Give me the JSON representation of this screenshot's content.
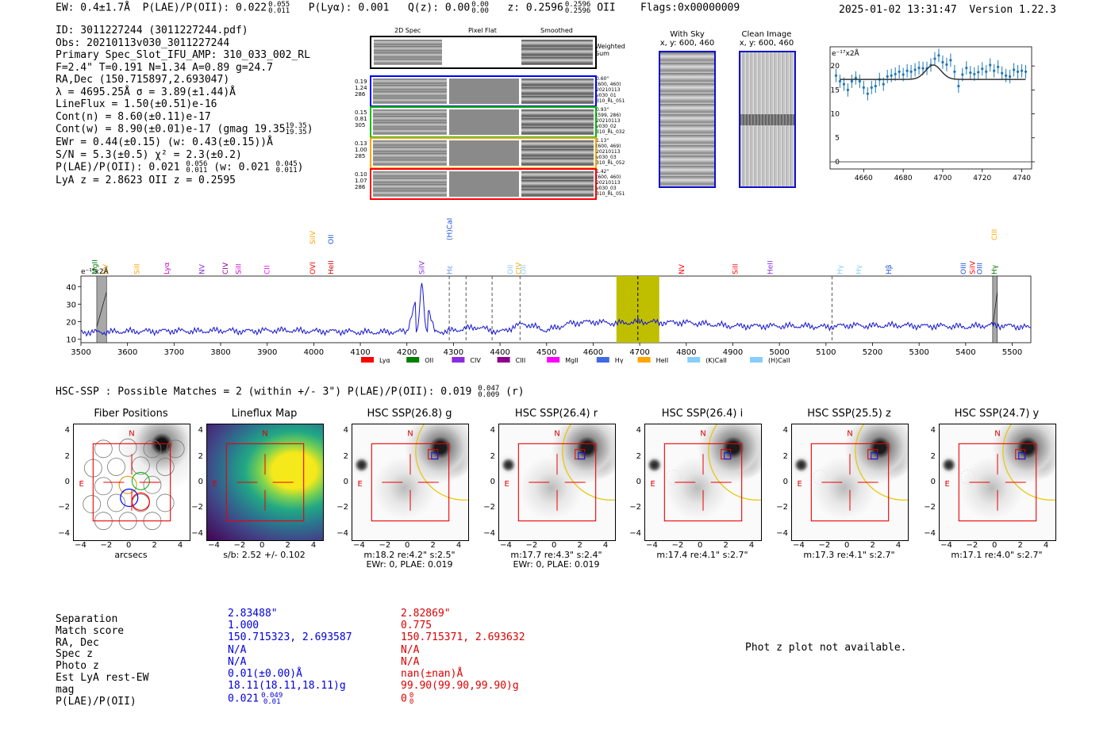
{
  "header": {
    "ew": "EW: 0.4±1.7Å",
    "plae_label": "P(LAE)/P(OII): 0.022",
    "plae_hi": "0.055",
    "plae_lo": "0.011",
    "plya": "P(Lyα): 0.001",
    "qz_label": "Q(z): 0.00",
    "qz_hi": "0.00",
    "qz_lo": "0.00",
    "z_label": "z: 0.2596",
    "z_hi": "0.2596",
    "z_lo": "0.2596",
    "z_line": "OII",
    "flags": "Flags:0x00000009",
    "timestamp": "2025-01-02 13:31:47",
    "version": "Version 1.22.3"
  },
  "info": {
    "id": "ID: 3011227244 (3011227244.pdf)",
    "obs": "Obs: 20210113v030_3011227244",
    "primary": "Primary Spec_Slot_IFU_AMP: 310_033_002_RL",
    "fiber": "F=2.4\"  T=0.191  N=1.34  A=0.89  g=24.7",
    "radec": "RA,Dec (150.715897,2.693047)",
    "lambda": "λ = 4695.25Å  σ = 3.89(±1.44)Å",
    "lineflux": "LineFlux = 1.50(±0.51)e-16",
    "cont_n": "Cont(n) = 8.60(±0.11)e-17",
    "cont_w": "Cont(w) = 8.90(±0.01)e-17 (gmag 19.35",
    "gmag_hi": "19.35",
    "gmag_lo": "19.35",
    "cont_w_close": ")",
    "ewr": "EWr = 0.44(±0.15) (w: 0.43(±0.15))Å",
    "sn": "S/N = 5.3(±0.5)  χ² = 2.3(±0.2)",
    "plae": "P(LAE)/P(OII): 0.021",
    "plae_hi": "0.056",
    "plae_lo": "0.011",
    "plae_w": "(w: 0.021",
    "plae_w_hi": "0.045",
    "plae_w_lo": "0.011",
    "plae_w_close": ")",
    "lya_z": "LyA z = 2.8623  OII z = 0.2595"
  },
  "fiber_panel": {
    "col_2d": "2D Spec",
    "col_flat": "Pixel Flat",
    "col_smooth": "Smoothed",
    "weighted_sum": [
      "Weighted",
      "Sum"
    ],
    "rows": [
      {
        "left": [
          "0.19",
          "1.24",
          "286"
        ],
        "right": [
          "0.60\"",
          "(600, 460)",
          "20210113",
          "v030_01",
          "310_RL_051"
        ],
        "color": "#0000ff"
      },
      {
        "left": [
          "0.15",
          "0.81",
          "305"
        ],
        "right": [
          "0.93\"",
          "(599, 286)",
          "20210113",
          "v030_02",
          "310_RL_032"
        ],
        "color": "#00c000"
      },
      {
        "left": [
          "0.13",
          "1.00",
          "285"
        ],
        "right": [
          "1.13\"",
          "(600, 469)",
          "20210113",
          "v030_03",
          "310_RL_052"
        ],
        "color": "#ffa500"
      },
      {
        "left": [
          "0.10",
          "1.07",
          "286"
        ],
        "right": [
          "1.42\"",
          "(600, 460)",
          "20210113",
          "v030_03",
          "310_RL_051"
        ],
        "color": "#ff0000"
      }
    ]
  },
  "sky_panel": {
    "with_sky": "With Sky",
    "clean": "Clean Image",
    "coords": "x, y: 600, 460"
  },
  "zoom_plot": {
    "ylabel": "e⁻¹⁷x2Å",
    "yticks": [
      "20",
      "15",
      "10",
      "5",
      "0"
    ],
    "xticks": [
      "4660",
      "4680",
      "4700",
      "4720",
      "4740"
    ],
    "chart_data": {
      "type": "scatter",
      "xlim": [
        4643,
        4745
      ],
      "ylim": [
        -1.5,
        24
      ],
      "x": [
        4646,
        4648,
        4650,
        4652,
        4654,
        4656,
        4658,
        4660,
        4662,
        4664,
        4666,
        4668,
        4670,
        4672,
        4674,
        4676,
        4678,
        4680,
        4682,
        4684,
        4686,
        4688,
        4690,
        4692,
        4694,
        4696,
        4698,
        4700,
        4702,
        4704,
        4706,
        4708,
        4710,
        4712,
        4714,
        4716,
        4718,
        4720,
        4722,
        4724,
        4726,
        4728,
        4730,
        4732,
        4734,
        4736,
        4738,
        4740,
        4742
      ],
      "y": [
        18,
        16.8,
        16.2,
        15,
        16.8,
        17.5,
        16.8,
        15.5,
        14.2,
        15.5,
        15.8,
        17.2,
        16.2,
        17.8,
        18,
        18.3,
        18.8,
        18.2,
        19,
        18.8,
        19.2,
        19.6,
        19.5,
        19.5,
        20.2,
        21.5,
        22.2,
        20.8,
        20.3,
        21.2,
        18.8,
        15.8,
        18.2,
        19.6,
        18.6,
        18.3,
        18.7,
        19.4,
        18.8,
        20.2,
        19,
        19.8,
        18.5,
        18,
        17.8,
        19.2,
        18.8,
        19,
        18.8
      ],
      "fit_center": 4695.25,
      "fit_sigma": 3.89,
      "fit_base": 17.2,
      "fit_amp": 3.0
    }
  },
  "spectrum": {
    "ylabel": "e⁻¹⁷x2Å",
    "yticks": [
      "40",
      "30",
      "20",
      "10"
    ],
    "xticks": [
      "3500",
      "3600",
      "3700",
      "3800",
      "3900",
      "4000",
      "4100",
      "4200",
      "4300",
      "4400",
      "4500",
      "4600",
      "4700",
      "4800",
      "4900",
      "5000",
      "5100",
      "5200",
      "5300",
      "5400",
      "5500"
    ],
    "line_labels": [
      {
        "t": "MgII",
        "w": 3530,
        "c": "#007700",
        "tier": 0
      },
      {
        "t": "NV",
        "w": 3553,
        "c": "#ffa500",
        "tier": 0
      },
      {
        "t": "SiII",
        "w": 3620,
        "c": "#ffa500",
        "tier": 0
      },
      {
        "t": "Lyα",
        "w": 3684,
        "c": "#cc00cc",
        "tier": 0
      },
      {
        "t": "NV",
        "w": 3760,
        "c": "#8a2be2",
        "tier": 0
      },
      {
        "t": "CIV",
        "w": 3810,
        "c": "#8b008b",
        "tier": 0
      },
      {
        "t": "SiII",
        "w": 3838,
        "c": "#cc00cc",
        "tier": 0
      },
      {
        "t": "CII",
        "w": 3900,
        "c": "#ff00ff",
        "tier": 0
      },
      {
        "t": "OVI",
        "w": 3998,
        "c": "#ff0000",
        "tier": 0
      },
      {
        "t": "SiIV",
        "w": 3998,
        "c": "#ffa500",
        "tier": 1
      },
      {
        "t": "HeII",
        "w": 4037,
        "c": "#cc0000",
        "tier": 0
      },
      {
        "t": "OII",
        "w": 4037,
        "c": "#1e50dc",
        "tier": 1
      },
      {
        "t": "SiIV",
        "w": 4232,
        "c": "#8a2be2",
        "tier": 0
      },
      {
        "t": "(H)CaII",
        "w": 4292,
        "c": "#1e50dc",
        "tier": 2
      },
      {
        "t": "Hε",
        "w": 4292,
        "c": "#6495ed",
        "tier": 0
      },
      {
        "t": "OII",
        "w": 4422,
        "c": "#87cefa",
        "tier": 0
      },
      {
        "t": "CIV",
        "w": 4440,
        "c": "#ffa500",
        "tier": 0
      },
      {
        "t": "OII",
        "w": 4450,
        "c": "#87cefa",
        "tier": 0
      },
      {
        "t": "NV",
        "w": 4790,
        "c": "#ff0000",
        "tier": 0
      },
      {
        "t": "SiII",
        "w": 4905,
        "c": "#ff0000",
        "tier": 0
      },
      {
        "t": "HeII",
        "w": 4980,
        "c": "#8a2be2",
        "tier": 0
      },
      {
        "t": "Hγ",
        "w": 5130,
        "c": "#87cefa",
        "tier": 0
      },
      {
        "t": "Hγ",
        "w": 5170,
        "c": "#87cefa",
        "tier": 0
      },
      {
        "t": "Hβ",
        "w": 5235,
        "c": "#1e50dc",
        "tier": 0
      },
      {
        "t": "OIII",
        "w": 5395,
        "c": "#1e50dc",
        "tier": 0
      },
      {
        "t": "SiIV",
        "w": 5415,
        "c": "#ff0000",
        "tier": 0
      },
      {
        "t": "OIII",
        "w": 5430,
        "c": "#1e50dc",
        "tier": 0
      },
      {
        "t": "CIII",
        "w": 5462,
        "c": "#ffa500",
        "tier": 2
      },
      {
        "t": "Hγ",
        "w": 5462,
        "c": "#007700",
        "tier": 0
      }
    ],
    "legend": [
      {
        "t": "Lyα",
        "c": "#ff0000"
      },
      {
        "t": "OII",
        "c": "#008000"
      },
      {
        "t": "CIV",
        "c": "#8a2be2"
      },
      {
        "t": "CIII",
        "c": "#8b008b"
      },
      {
        "t": "MgII",
        "c": "#ff00ff"
      },
      {
        "t": "Hγ",
        "c": "#4169e1"
      },
      {
        "t": "HeII",
        "c": "#ffa500"
      },
      {
        "t": "(K)CaII",
        "c": "#87cefa"
      },
      {
        "t": "(H)CaII",
        "c": "#87cefa"
      }
    ],
    "chart_data": {
      "type": "line",
      "xlim": [
        3500,
        5540
      ],
      "ylim": [
        8,
        46
      ],
      "emission_center": 4232,
      "emission_peak": 42,
      "highlight_band": [
        4650,
        4742
      ],
      "highlight_center": 4696,
      "masked": [
        [
          3534,
          3555
        ],
        [
          5458,
          5468
        ]
      ],
      "dashed": [
        4291,
        4327,
        4383,
        4443,
        5113
      ],
      "x": [
        3500,
        3550,
        3600,
        3650,
        3700,
        3750,
        3800,
        3850,
        3900,
        3950,
        4000,
        4050,
        4100,
        4150,
        4200,
        4230,
        4260,
        4300,
        4350,
        4400,
        4450,
        4500,
        4550,
        4600,
        4650,
        4700,
        4750,
        4800,
        4850,
        4900,
        4950,
        5000,
        5050,
        5100,
        5150,
        5200,
        5250,
        5300,
        5350,
        5400,
        5450,
        5500,
        5540
      ],
      "y": [
        14,
        14,
        14.5,
        14.5,
        14.8,
        14.5,
        15,
        14.5,
        15,
        15,
        14.5,
        14.5,
        14,
        14,
        14.5,
        42,
        14,
        15,
        17,
        14,
        19,
        15,
        19,
        20,
        19,
        20,
        19.5,
        19.5,
        18.5,
        17.5,
        17.5,
        17.5,
        17.5,
        17,
        18,
        17.5,
        18,
        17.5,
        17.5,
        17,
        18,
        17.5,
        16.5
      ]
    }
  },
  "hsc": {
    "title": "HSC-SSP : Possible Matches = 2 (within +/- 3\")  P(LAE)/P(OII): 0.019",
    "plae_hi": "0.047",
    "plae_lo": "0.009",
    "filter": "(r)",
    "panels": [
      {
        "title": "Fiber Positions",
        "foot1": "arcsecs",
        "foot2": ""
      },
      {
        "title": "Lineflux Map",
        "foot1": "s/b: 2.52 +/- 0.102",
        "foot2": ""
      },
      {
        "title": "HSC SSP(26.8) g",
        "foot1": "m:18.2  re:4.2\"  s:2.5\"",
        "foot2": "EWr: 0, PLAE: 0.019"
      },
      {
        "title": "HSC SSP(26.4) r",
        "foot1": "m:17.7  re:4.3\"  s:2.4\"",
        "foot2": "EWr: 0, PLAE: 0.019"
      },
      {
        "title": "HSC SSP(26.4) i",
        "foot1": "m:17.4  re:4.1\"  s:2.7\"",
        "foot2": ""
      },
      {
        "title": "HSC SSP(25.5) z",
        "foot1": "m:17.3  re:4.1\"  s:2.7\"",
        "foot2": ""
      },
      {
        "title": "HSC SSP(24.7) y",
        "foot1": "m:17.1  re:4.0\"  s:2.7\"",
        "foot2": ""
      }
    ],
    "axis_y": [
      "4",
      "2",
      "0",
      "−2",
      "−4"
    ],
    "axis_x": [
      "−4",
      "−2",
      "0",
      "2",
      "4"
    ],
    "north": "N",
    "east": "E"
  },
  "table": {
    "labels": [
      "Separation",
      "Match score",
      "RA, Dec",
      "Spec z",
      "Photo z",
      "Est LyA rest-EW",
      "mag",
      "P(LAE)/P(OII)"
    ],
    "col1": [
      "2.83488\"",
      "1.000",
      "150.715323, 2.693587",
      "N/A",
      "N/A",
      "0.01(±0.00)Å",
      "18.11(18.11,18.11)g",
      "0.021"
    ],
    "col1_plae_hi": "0.049",
    "col1_plae_lo": "0.01",
    "col2": [
      "2.82869\"",
      "0.775",
      "150.715371, 2.693632",
      "N/A",
      "N/A",
      "nan(±nan)Å",
      "99.90(99.90,99.90)g",
      "0"
    ],
    "col2_plae_hi": "0",
    "col2_plae_lo": "0",
    "photz_note": "Phot z plot not available."
  }
}
